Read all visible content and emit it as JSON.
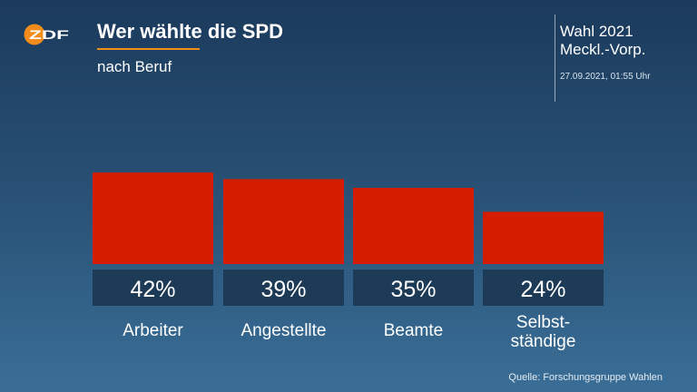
{
  "header": {
    "logo_text": "ZDF",
    "title": "Wer wählte die SPD",
    "subtitle": "nach Beruf"
  },
  "election": {
    "line1": "Wahl 2021",
    "line2": "Meckl.-Vorp.",
    "timestamp": "27.09.2021, 01:55 Uhr"
  },
  "chart_data": {
    "type": "bar",
    "categories": [
      "Arbeiter",
      "Angestellte",
      "Beamte",
      "Selbst-\nständige"
    ],
    "values": [
      42,
      39,
      35,
      24
    ],
    "value_labels": [
      "42%",
      "39%",
      "35%",
      "24%"
    ],
    "unit": "%",
    "title": "Wer wählte die SPD",
    "subtitle": "nach Beruf",
    "xlabel": "",
    "ylabel": "",
    "grid": false,
    "bar_color": "#d41c00",
    "label_box_color": "#1d3a57"
  },
  "footer": {
    "source": "Quelle: Forschungsgruppe Wahlen"
  },
  "colors": {
    "accent": "#f28c1b",
    "bar": "#d41c00"
  }
}
